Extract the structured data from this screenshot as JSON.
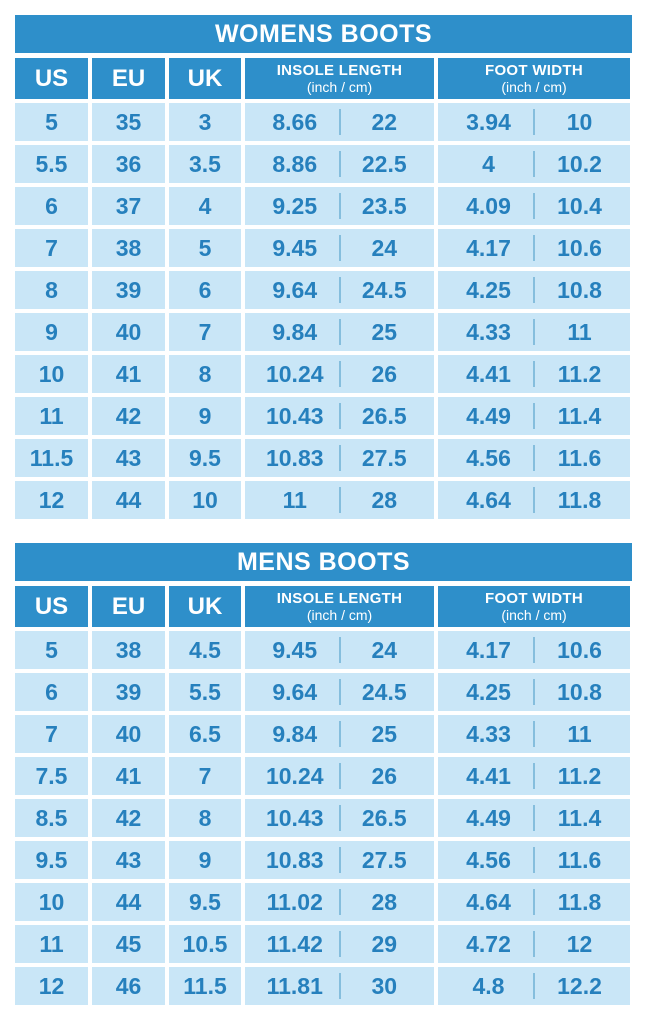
{
  "colors": {
    "header_blue": "#2e8fca",
    "cell_light_blue": "#c9e6f7",
    "text_blue": "#2680bd",
    "divider_blue": "#85bedd",
    "background": "#ffffff",
    "header_text": "#ffffff"
  },
  "chart_data": [
    {
      "type": "table",
      "title": "WOMENS BOOTS",
      "columns": {
        "us": "US",
        "eu": "EU",
        "uk": "UK",
        "insole_title": "INSOLE LENGTH",
        "insole_sub": "(inch / cm)",
        "foot_title": "FOOT WIDTH",
        "foot_sub": "(inch / cm)"
      },
      "rows": [
        {
          "us": "5",
          "eu": "35",
          "uk": "3",
          "insole_in": "8.66",
          "insole_cm": "22",
          "foot_in": "3.94",
          "foot_cm": "10"
        },
        {
          "us": "5.5",
          "eu": "36",
          "uk": "3.5",
          "insole_in": "8.86",
          "insole_cm": "22.5",
          "foot_in": "4",
          "foot_cm": "10.2"
        },
        {
          "us": "6",
          "eu": "37",
          "uk": "4",
          "insole_in": "9.25",
          "insole_cm": "23.5",
          "foot_in": "4.09",
          "foot_cm": "10.4"
        },
        {
          "us": "7",
          "eu": "38",
          "uk": "5",
          "insole_in": "9.45",
          "insole_cm": "24",
          "foot_in": "4.17",
          "foot_cm": "10.6"
        },
        {
          "us": "8",
          "eu": "39",
          "uk": "6",
          "insole_in": "9.64",
          "insole_cm": "24.5",
          "foot_in": "4.25",
          "foot_cm": "10.8"
        },
        {
          "us": "9",
          "eu": "40",
          "uk": "7",
          "insole_in": "9.84",
          "insole_cm": "25",
          "foot_in": "4.33",
          "foot_cm": "11"
        },
        {
          "us": "10",
          "eu": "41",
          "uk": "8",
          "insole_in": "10.24",
          "insole_cm": "26",
          "foot_in": "4.41",
          "foot_cm": "11.2"
        },
        {
          "us": "11",
          "eu": "42",
          "uk": "9",
          "insole_in": "10.43",
          "insole_cm": "26.5",
          "foot_in": "4.49",
          "foot_cm": "11.4"
        },
        {
          "us": "11.5",
          "eu": "43",
          "uk": "9.5",
          "insole_in": "10.83",
          "insole_cm": "27.5",
          "foot_in": "4.56",
          "foot_cm": "11.6"
        },
        {
          "us": "12",
          "eu": "44",
          "uk": "10",
          "insole_in": "11",
          "insole_cm": "28",
          "foot_in": "4.64",
          "foot_cm": "11.8"
        }
      ]
    },
    {
      "type": "table",
      "title": "MENS BOOTS",
      "columns": {
        "us": "US",
        "eu": "EU",
        "uk": "UK",
        "insole_title": "INSOLE LENGTH",
        "insole_sub": "(inch / cm)",
        "foot_title": "FOOT WIDTH",
        "foot_sub": "(inch / cm)"
      },
      "rows": [
        {
          "us": "5",
          "eu": "38",
          "uk": "4.5",
          "insole_in": "9.45",
          "insole_cm": "24",
          "foot_in": "4.17",
          "foot_cm": "10.6"
        },
        {
          "us": "6",
          "eu": "39",
          "uk": "5.5",
          "insole_in": "9.64",
          "insole_cm": "24.5",
          "foot_in": "4.25",
          "foot_cm": "10.8"
        },
        {
          "us": "7",
          "eu": "40",
          "uk": "6.5",
          "insole_in": "9.84",
          "insole_cm": "25",
          "foot_in": "4.33",
          "foot_cm": "11"
        },
        {
          "us": "7.5",
          "eu": "41",
          "uk": "7",
          "insole_in": "10.24",
          "insole_cm": "26",
          "foot_in": "4.41",
          "foot_cm": "11.2"
        },
        {
          "us": "8.5",
          "eu": "42",
          "uk": "8",
          "insole_in": "10.43",
          "insole_cm": "26.5",
          "foot_in": "4.49",
          "foot_cm": "11.4"
        },
        {
          "us": "9.5",
          "eu": "43",
          "uk": "9",
          "insole_in": "10.83",
          "insole_cm": "27.5",
          "foot_in": "4.56",
          "foot_cm": "11.6"
        },
        {
          "us": "10",
          "eu": "44",
          "uk": "9.5",
          "insole_in": "11.02",
          "insole_cm": "28",
          "foot_in": "4.64",
          "foot_cm": "11.8"
        },
        {
          "us": "11",
          "eu": "45",
          "uk": "10.5",
          "insole_in": "11.42",
          "insole_cm": "29",
          "foot_in": "4.72",
          "foot_cm": "12"
        },
        {
          "us": "12",
          "eu": "46",
          "uk": "11.5",
          "insole_in": "11.81",
          "insole_cm": "30",
          "foot_in": "4.8",
          "foot_cm": "12.2"
        }
      ]
    }
  ]
}
